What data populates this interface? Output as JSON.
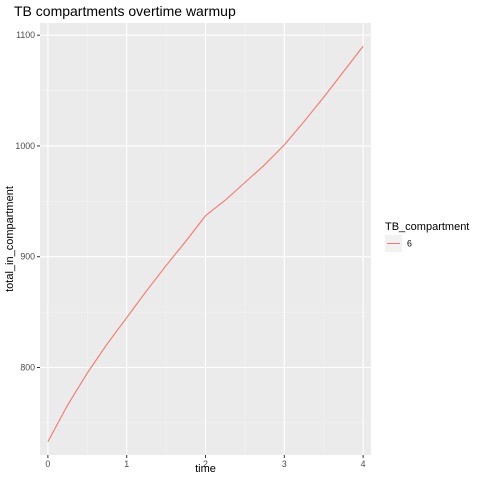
{
  "chart_data": {
    "type": "line",
    "title": "TB compartments overtime warmup",
    "xlabel": "time",
    "ylabel": "total_in_compartment",
    "xlim": [
      -0.1,
      4.1
    ],
    "ylim": [
      721,
      1111
    ],
    "x_ticks": [
      0,
      1,
      2,
      3,
      4
    ],
    "y_ticks": [
      800,
      900,
      1000,
      1100
    ],
    "grid": true,
    "legend": {
      "title": "TB_compartment",
      "placement": "right"
    },
    "series": [
      {
        "name": "6",
        "color": "#F8766D",
        "x": [
          0,
          0.25,
          0.5,
          0.75,
          1,
          1.25,
          1.5,
          1.75,
          2,
          2.25,
          2.5,
          2.75,
          3,
          3.25,
          3.5,
          3.75,
          4
        ],
        "y": [
          733,
          766,
          795,
          821,
          845,
          869,
          892,
          914,
          937,
          951,
          967,
          983,
          1001,
          1022,
          1044,
          1067,
          1090
        ]
      }
    ]
  }
}
